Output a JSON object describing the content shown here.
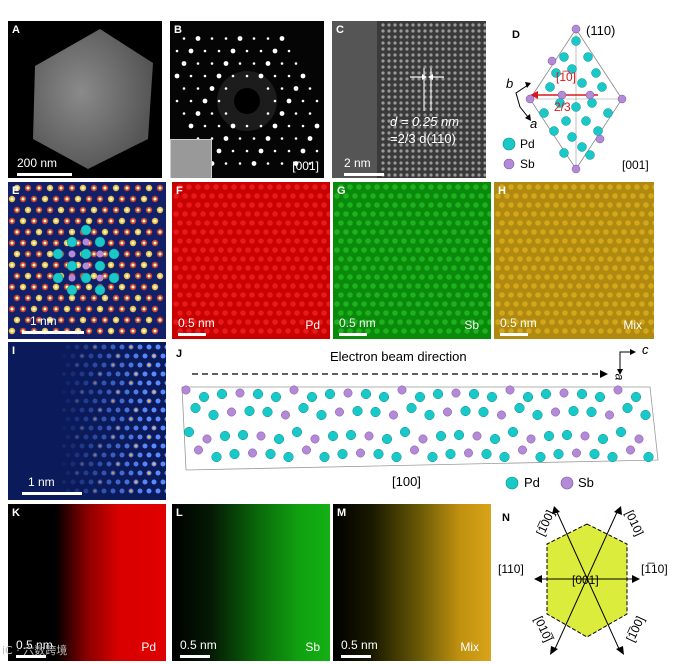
{
  "panels": {
    "A": {
      "letter": "A",
      "scale": "200 nm"
    },
    "B": {
      "letter": "B",
      "zone": "[001]"
    },
    "C": {
      "letter": "C",
      "scale": "2 nm",
      "d_line1": "d = 0.25 nm",
      "d_line2": "=2/3 d(110)"
    },
    "D": {
      "letter": "D",
      "plane": "(110)",
      "dir": "[1̅0]",
      "frac": "2/3",
      "axis_b": "b",
      "axis_a": "a",
      "legend_pd": "Pd",
      "legend_sb": "Sb",
      "zone": "[001]"
    },
    "E": {
      "letter": "E",
      "scale": "1 nm"
    },
    "F": {
      "letter": "F",
      "scale": "0.5 nm",
      "element": "Pd"
    },
    "G": {
      "letter": "G",
      "scale": "0.5 nm",
      "element": "Sb"
    },
    "H": {
      "letter": "H",
      "scale": "0.5 nm",
      "element": "Mix"
    },
    "I": {
      "letter": "I",
      "scale": "1 nm"
    },
    "J": {
      "letter": "J",
      "beam": "Electron beam direction",
      "axis_c": "c",
      "axis_a": "a",
      "zone": "[100]",
      "legend_pd": "Pd",
      "legend_sb": "Sb"
    },
    "K": {
      "letter": "K",
      "scale": "0.5 nm",
      "element": "Pd"
    },
    "L": {
      "letter": "L",
      "scale": "0.5 nm",
      "element": "Sb"
    },
    "M": {
      "letter": "M",
      "scale": "0.5 nm",
      "element": "Mix"
    },
    "N": {
      "letter": "N",
      "d_top_left": "[1̅00]",
      "d_top_right": "[010]",
      "d_left": "[110]",
      "d_right": "[1̅10]",
      "d_center": "[001]",
      "d_bot_left": "[010̅]",
      "d_bot_right": "[1̅00]"
    }
  },
  "colors": {
    "pd": "#19c9c9",
    "sb": "#b48ad8",
    "hex_fill": "#dcec3c"
  },
  "watermark": "iC · 六数跨境"
}
